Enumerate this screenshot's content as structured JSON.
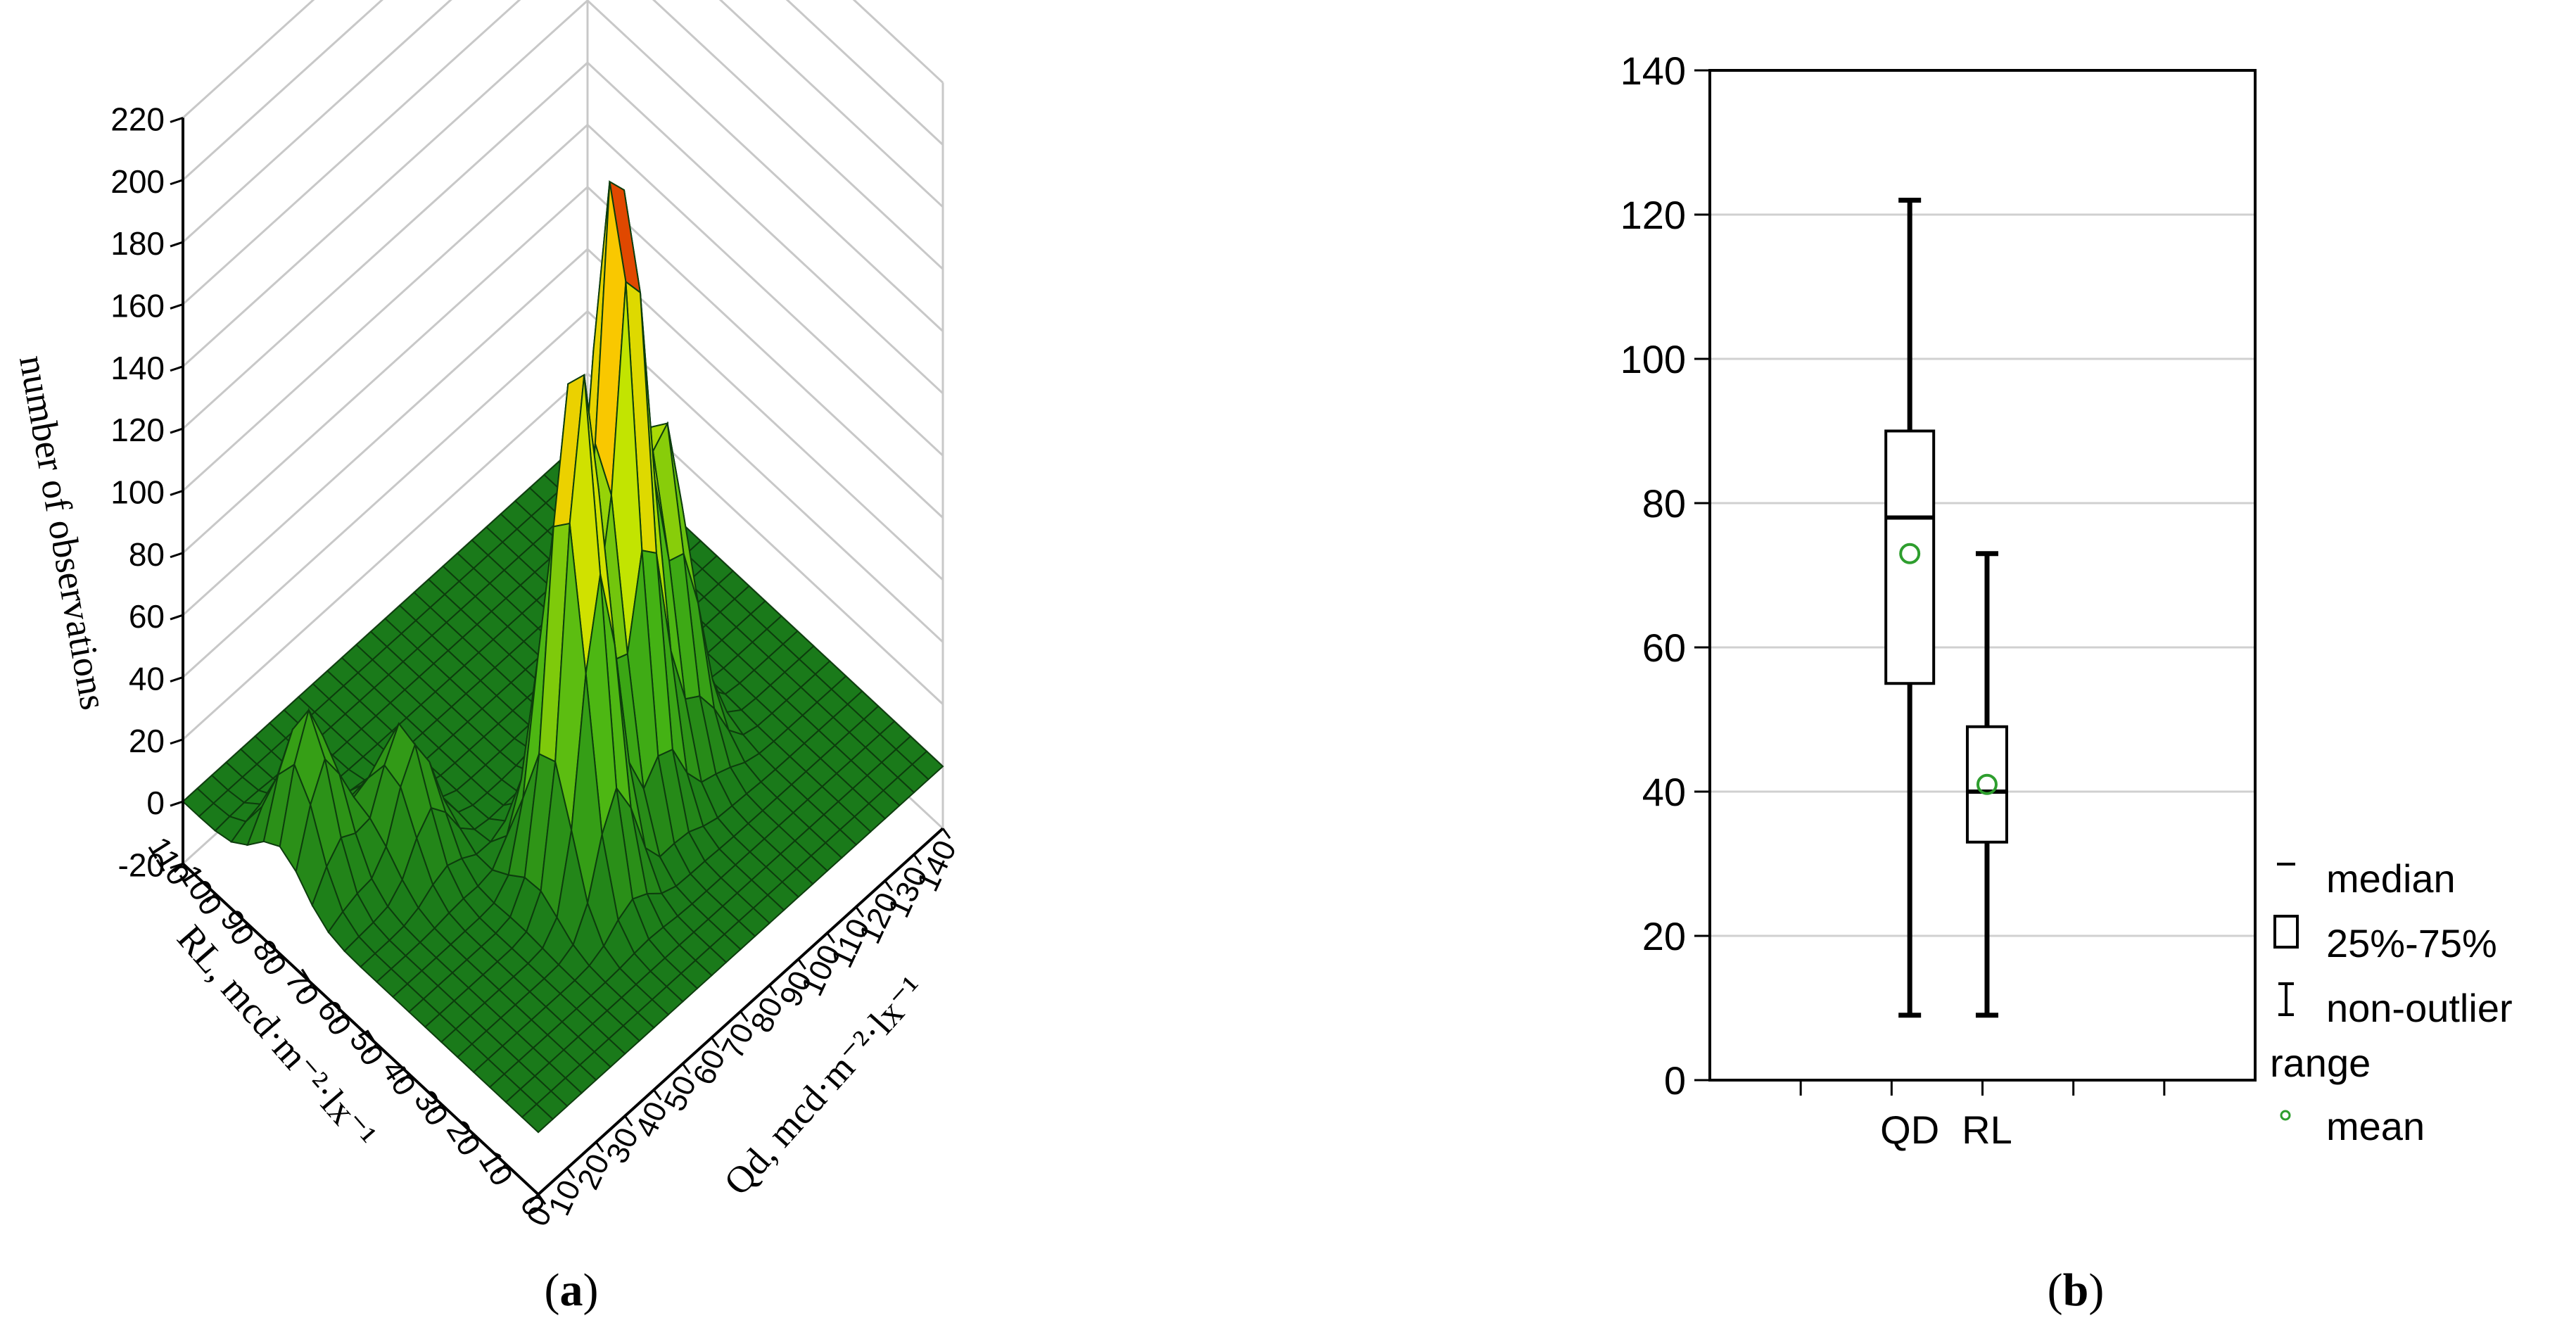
{
  "figure": {
    "panel_a_label": "a",
    "panel_b_label": "b"
  },
  "chart_data": [
    {
      "type": "surface",
      "panel": "a",
      "z_label": "number of observations",
      "x_label": "Qd, mcd·m⁻²·lx⁻¹",
      "y_label": "RL, mcd·m⁻²·lx⁻¹",
      "z_ticks": [
        "220",
        "200",
        "180",
        "160",
        "140",
        "120",
        "100",
        "80",
        "60",
        "40",
        "20",
        "0",
        "-20"
      ],
      "x_ticks": [
        "0",
        "10",
        "20",
        "30",
        "40",
        "50",
        "60",
        "70",
        "80",
        "90",
        "100",
        "110",
        "120",
        "130",
        "140"
      ],
      "y_ticks": [
        "110",
        "100",
        "90",
        "80",
        "70",
        "60",
        "50",
        "40",
        "30",
        "20",
        "10",
        "0"
      ],
      "xlim": [
        0,
        140
      ],
      "ylim": [
        0,
        110
      ],
      "zlim": [
        -20,
        220
      ],
      "peaks": [
        {
          "x": 77,
          "y": 44,
          "z": 210
        },
        {
          "x": 55,
          "y": 37,
          "z": 170
        },
        {
          "x": 95,
          "y": 47,
          "z": 105
        },
        {
          "x": 10,
          "y": 80,
          "z": 50
        },
        {
          "x": 30,
          "y": 68,
          "z": 40
        }
      ],
      "colors": {
        "low": "#1a7a1a",
        "mid": "#e8e800",
        "high": "#cc0000"
      }
    },
    {
      "type": "box",
      "panel": "b",
      "categories": [
        "QD",
        "RL"
      ],
      "boxes": [
        {
          "name": "QD",
          "min": 9,
          "q1": 55,
          "median": 78,
          "q3": 90,
          "max": 122,
          "mean": 73
        },
        {
          "name": "RL",
          "min": 9,
          "q1": 33,
          "median": 40,
          "q3": 49,
          "max": 73,
          "mean": 41
        }
      ],
      "ylim": [
        0,
        140
      ],
      "yticks": [
        "0",
        "20",
        "40",
        "60",
        "80",
        "100",
        "120",
        "140"
      ],
      "grid": true,
      "legend": {
        "position": "right",
        "items": [
          "median",
          "25%-75%",
          "non-outlier range",
          "mean"
        ]
      },
      "mean_color": "#2e9e2e"
    }
  ]
}
